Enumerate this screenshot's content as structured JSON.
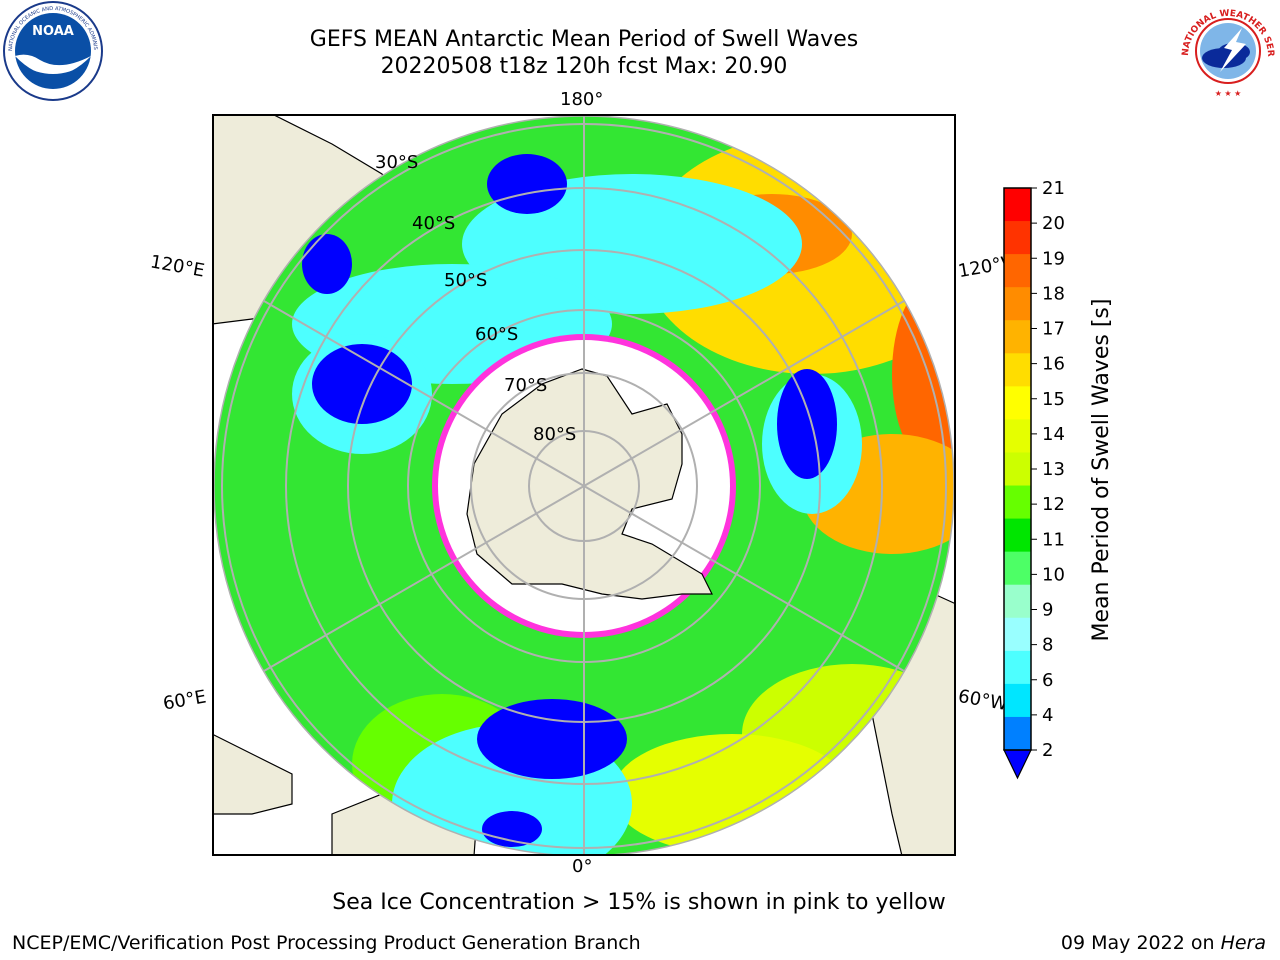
{
  "title_line1": "GEFS MEAN Antarctic Mean Period of Swell Waves",
  "title_line2": "20220508 t18z 120h fcst   Max: 20.90",
  "logos": {
    "left": "noaa-logo",
    "right": "nws-logo"
  },
  "logo_text": {
    "noaa": "NOAA",
    "nws_ring": "NATIONAL WEATHER SERVICE"
  },
  "map": {
    "projection": "south-polar-stereographic",
    "lon_labels": {
      "top": "180°",
      "left": "120°E",
      "right": "120°W",
      "bottom": "0°",
      "lower_left": "60°E",
      "lower_right": "60°W"
    },
    "lat_labels": [
      "30°S",
      "40°S",
      "50°S",
      "60°S",
      "70°S",
      "80°S"
    ],
    "colors": {
      "land": "#eeecda",
      "ice": "#ffffff",
      "grid": "#b0b0b0",
      "ice_edge": "#ff33dd"
    }
  },
  "colorbar": {
    "label": "Mean Period of Swell Waves [s]",
    "ticks": [
      "21",
      "20",
      "19",
      "18",
      "17",
      "16",
      "15",
      "14",
      "13",
      "12",
      "11",
      "10",
      "9",
      "8",
      "6",
      "4",
      "2"
    ],
    "colors": [
      "#ff0000",
      "#ff3300",
      "#ff6600",
      "#ff8c00",
      "#ffb300",
      "#ffdd00",
      "#ffff00",
      "#e5ff00",
      "#ccff00",
      "#66ff00",
      "#00e600",
      "#4dff66",
      "#99ffcc",
      "#99ffff",
      "#4dffff",
      "#00e6ff",
      "#0080ff"
    ],
    "extend_color": "#0000ff"
  },
  "footer": {
    "note": "Sea Ice Concentration > 15% is shown in pink to yellow",
    "credit": "NCEP/EMC/Verification Post Processing Product Generation Branch",
    "date": "09 May 2022 on ",
    "machine": "Hera"
  }
}
